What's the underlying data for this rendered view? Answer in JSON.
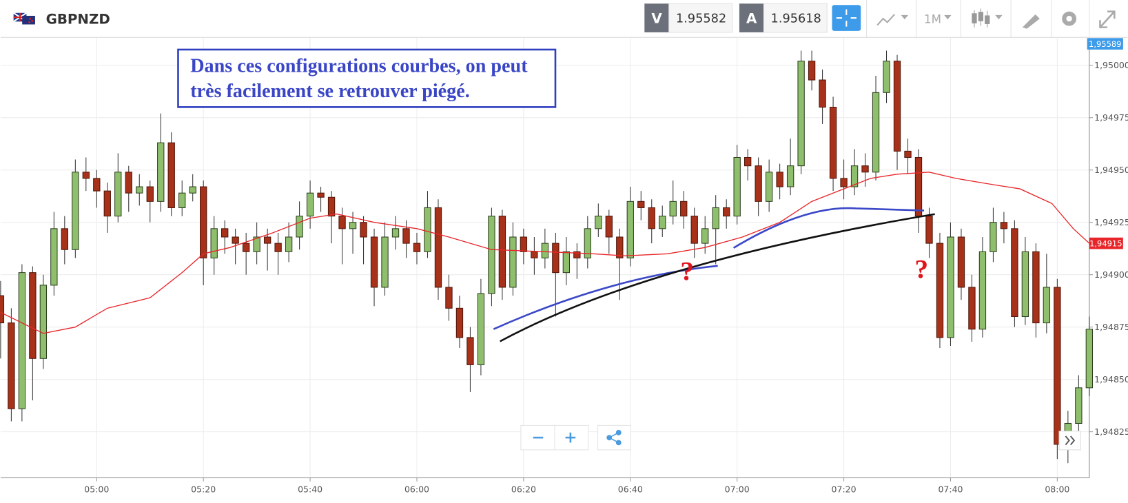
{
  "header": {
    "symbol": "GBPNZD",
    "bid_label": "V",
    "bid": "1.95582",
    "ask_label": "A",
    "ask": "1.95618",
    "timeframe": "1M"
  },
  "chart_data": {
    "type": "candlestick",
    "annotation": [
      "Dans ces configurations courbes, on peut",
      "très facilement se retrouver piégé."
    ],
    "markers": [
      "?",
      "?"
    ],
    "price_tag": "1,95589",
    "up_color": "#8fbf6c",
    "down_color": "#a8311a",
    "xlim": [
      "04:42",
      "08:06"
    ],
    "xticks": [
      "05:00",
      "05:20",
      "05:40",
      "06:00",
      "06:20",
      "06:40",
      "07:00",
      "07:20",
      "07:40",
      "08:00"
    ],
    "ylim": [
      1.94803,
      1.95013
    ],
    "yticks": [
      {
        "value": 1.95,
        "label": "1,95000"
      },
      {
        "value": 1.94975,
        "label": "1,94975"
      },
      {
        "value": 1.9495,
        "label": "1,94950"
      },
      {
        "value": 1.94925,
        "label": "1,94925"
      },
      {
        "value": 1.949,
        "label": "1,94900"
      },
      {
        "value": 1.94875,
        "label": "1,94875"
      },
      {
        "value": 1.9485,
        "label": "1,94850"
      },
      {
        "value": 1.94825,
        "label": "1,94825"
      }
    ],
    "grid": true,
    "x": [
      "04:42",
      "04:44",
      "04:46",
      "04:48",
      "04:50",
      "04:52",
      "04:54",
      "04:56",
      "04:58",
      "05:00",
      "05:02",
      "05:04",
      "05:06",
      "05:08",
      "05:10",
      "05:12",
      "05:14",
      "05:16",
      "05:18",
      "05:20",
      "05:22",
      "05:24",
      "05:26",
      "05:28",
      "05:30",
      "05:32",
      "05:34",
      "05:36",
      "05:38",
      "05:40",
      "05:42",
      "05:44",
      "05:46",
      "05:48",
      "05:50",
      "05:52",
      "05:54",
      "05:56",
      "05:58",
      "06:00",
      "06:02",
      "06:04",
      "06:06",
      "06:08",
      "06:10",
      "06:12",
      "06:14",
      "06:16",
      "06:18",
      "06:20",
      "06:22",
      "06:24",
      "06:26",
      "06:28",
      "06:30",
      "06:32",
      "06:34",
      "06:36",
      "06:38",
      "06:40",
      "06:42",
      "06:44",
      "06:46",
      "06:48",
      "06:50",
      "06:52",
      "06:54",
      "06:56",
      "06:58",
      "07:00",
      "07:02",
      "07:04",
      "07:06",
      "07:08",
      "07:10",
      "07:12",
      "07:14",
      "07:16",
      "07:18",
      "07:20",
      "07:22",
      "07:24",
      "07:26",
      "07:28",
      "07:30",
      "07:32",
      "07:34",
      "07:36",
      "07:38",
      "07:40",
      "07:42",
      "07:44",
      "07:46",
      "07:48",
      "07:50",
      "07:52",
      "07:54",
      "07:56",
      "07:58",
      "08:00",
      "08:02",
      "08:04",
      "08:06"
    ],
    "ohlc": [
      [
        1.9489,
        1.94897,
        1.9486,
        1.94877
      ],
      [
        1.94877,
        1.94884,
        1.9483,
        1.94836
      ],
      [
        1.94836,
        1.94905,
        1.9483,
        1.94901
      ],
      [
        1.94901,
        1.94904,
        1.9484,
        1.9486
      ],
      [
        1.9486,
        1.949,
        1.94855,
        1.94895
      ],
      [
        1.94895,
        1.9493,
        1.9489,
        1.94922
      ],
      [
        1.94922,
        1.94928,
        1.94905,
        1.94912
      ],
      [
        1.94912,
        1.94955,
        1.94908,
        1.94949
      ],
      [
        1.94949,
        1.94956,
        1.9494,
        1.94946
      ],
      [
        1.94946,
        1.9495,
        1.94932,
        1.9494
      ],
      [
        1.9494,
        1.94944,
        1.9492,
        1.94928
      ],
      [
        1.94928,
        1.94958,
        1.94925,
        1.94949
      ],
      [
        1.94949,
        1.94952,
        1.9493,
        1.94939
      ],
      [
        1.94939,
        1.94948,
        1.94933,
        1.94942
      ],
      [
        1.94942,
        1.94945,
        1.94925,
        1.94935
      ],
      [
        1.94935,
        1.94977,
        1.9493,
        1.94963
      ],
      [
        1.94963,
        1.94968,
        1.94928,
        1.94932
      ],
      [
        1.94932,
        1.94945,
        1.94928,
        1.94939
      ],
      [
        1.94939,
        1.94948,
        1.94935,
        1.94942
      ],
      [
        1.94942,
        1.94945,
        1.94895,
        1.94908
      ],
      [
        1.94908,
        1.94928,
        1.949,
        1.94922
      ],
      [
        1.94922,
        1.94926,
        1.9491,
        1.94918
      ],
      [
        1.94918,
        1.94922,
        1.94905,
        1.94915
      ],
      [
        1.94915,
        1.9492,
        1.949,
        1.94911
      ],
      [
        1.94911,
        1.94925,
        1.94905,
        1.94918
      ],
      [
        1.94918,
        1.94922,
        1.94902,
        1.94915
      ],
      [
        1.94915,
        1.9492,
        1.949,
        1.94911
      ],
      [
        1.94911,
        1.94925,
        1.94906,
        1.94918
      ],
      [
        1.94918,
        1.94935,
        1.94912,
        1.94928
      ],
      [
        1.94928,
        1.94945,
        1.94922,
        1.94939
      ],
      [
        1.94939,
        1.94942,
        1.9493,
        1.94937
      ],
      [
        1.94937,
        1.9494,
        1.94915,
        1.94928
      ],
      [
        1.94928,
        1.94932,
        1.94905,
        1.94922
      ],
      [
        1.94922,
        1.9493,
        1.9491,
        1.94925
      ],
      [
        1.94925,
        1.94928,
        1.94905,
        1.94918
      ],
      [
        1.94918,
        1.94922,
        1.94885,
        1.94894
      ],
      [
        1.94894,
        1.94925,
        1.9489,
        1.94918
      ],
      [
        1.94918,
        1.94928,
        1.94912,
        1.94922
      ],
      [
        1.94922,
        1.94926,
        1.94908,
        1.94915
      ],
      [
        1.94915,
        1.9492,
        1.94905,
        1.94911
      ],
      [
        1.94911,
        1.9494,
        1.94908,
        1.94932
      ],
      [
        1.94932,
        1.94936,
        1.94888,
        1.94894
      ],
      [
        1.94894,
        1.949,
        1.94878,
        1.94884
      ],
      [
        1.94884,
        1.9489,
        1.94865,
        1.9487
      ],
      [
        1.9487,
        1.94875,
        1.94844,
        1.94857
      ],
      [
        1.94857,
        1.94898,
        1.94852,
        1.94891
      ],
      [
        1.94891,
        1.94932,
        1.94885,
        1.94928
      ],
      [
        1.94928,
        1.94931,
        1.94888,
        1.94894
      ],
      [
        1.94894,
        1.94925,
        1.9489,
        1.94918
      ],
      [
        1.94918,
        1.94922,
        1.94905,
        1.94911
      ],
      [
        1.94911,
        1.94918,
        1.949,
        1.94908
      ],
      [
        1.94908,
        1.94922,
        1.94903,
        1.94915
      ],
      [
        1.94915,
        1.9492,
        1.9488,
        1.94901
      ],
      [
        1.94901,
        1.94918,
        1.94895,
        1.94911
      ],
      [
        1.94911,
        1.94915,
        1.94898,
        1.94908
      ],
      [
        1.94908,
        1.94928,
        1.94903,
        1.94922
      ],
      [
        1.94922,
        1.94934,
        1.94918,
        1.94928
      ],
      [
        1.94928,
        1.94931,
        1.9491,
        1.94918
      ],
      [
        1.94918,
        1.94922,
        1.94888,
        1.94908
      ],
      [
        1.94908,
        1.94942,
        1.94904,
        1.94935
      ],
      [
        1.94935,
        1.9494,
        1.94926,
        1.94932
      ],
      [
        1.94932,
        1.94936,
        1.94915,
        1.94922
      ],
      [
        1.94922,
        1.94933,
        1.94918,
        1.94928
      ],
      [
        1.94928,
        1.94945,
        1.94924,
        1.94935
      ],
      [
        1.94935,
        1.9494,
        1.94922,
        1.94928
      ],
      [
        1.94928,
        1.94932,
        1.94908,
        1.94915
      ],
      [
        1.94915,
        1.94928,
        1.9491,
        1.94922
      ],
      [
        1.94922,
        1.94938,
        1.94905,
        1.94932
      ],
      [
        1.94932,
        1.94936,
        1.94922,
        1.94928
      ],
      [
        1.94928,
        1.94962,
        1.94924,
        1.94956
      ],
      [
        1.94956,
        1.9496,
        1.94945,
        1.94952
      ],
      [
        1.94952,
        1.94956,
        1.94928,
        1.94935
      ],
      [
        1.94935,
        1.94955,
        1.9493,
        1.94949
      ],
      [
        1.94949,
        1.94953,
        1.94936,
        1.94942
      ],
      [
        1.94942,
        1.94965,
        1.94938,
        1.94952
      ],
      [
        1.94952,
        1.95007,
        1.94948,
        1.95002
      ],
      [
        1.95002,
        1.95007,
        1.94988,
        1.94993
      ],
      [
        1.94993,
        1.94998,
        1.94972,
        1.9498
      ],
      [
        1.9498,
        1.94985,
        1.9494,
        1.94946
      ],
      [
        1.94946,
        1.94955,
        1.94936,
        1.94942
      ],
      [
        1.94942,
        1.9496,
        1.94938,
        1.94952
      ],
      [
        1.94952,
        1.94958,
        1.94942,
        1.94949
      ],
      [
        1.94949,
        1.94995,
        1.94945,
        1.94987
      ],
      [
        1.94987,
        1.95007,
        1.94982,
        1.95002
      ],
      [
        1.95002,
        1.95005,
        1.9495,
        1.94959
      ],
      [
        1.94959,
        1.94965,
        1.94948,
        1.94956
      ],
      [
        1.94956,
        1.9496,
        1.9492,
        1.94928
      ],
      [
        1.94928,
        1.94932,
        1.94908,
        1.94915
      ],
      [
        1.94915,
        1.9492,
        1.94865,
        1.9487
      ],
      [
        1.9487,
        1.94925,
        1.94866,
        1.94918
      ],
      [
        1.94918,
        1.94922,
        1.94888,
        1.94894
      ],
      [
        1.94894,
        1.949,
        1.94868,
        1.94874
      ],
      [
        1.94874,
        1.94918,
        1.9487,
        1.94911
      ],
      [
        1.94911,
        1.94932,
        1.94906,
        1.94925
      ],
      [
        1.94925,
        1.9493,
        1.94915,
        1.94922
      ],
      [
        1.94922,
        1.94926,
        1.94875,
        1.9488
      ],
      [
        1.9488,
        1.94918,
        1.94876,
        1.94911
      ],
      [
        1.94911,
        1.94915,
        1.9487,
        1.94877
      ],
      [
        1.94877,
        1.9491,
        1.94872,
        1.94894
      ],
      [
        1.94894,
        1.94898,
        1.94812,
        1.94819
      ],
      [
        1.94819,
        1.94835,
        1.9481,
        1.94829
      ],
      [
        1.94829,
        1.94852,
        1.94825,
        1.94846
      ],
      [
        1.94846,
        1.9488,
        1.94842,
        1.94874
      ]
    ],
    "ma": {
      "color": "#e8262a",
      "x": [
        "04:42",
        "04:50",
        "04:56",
        "05:02",
        "05:10",
        "05:16",
        "05:20",
        "05:25",
        "05:33",
        "05:40",
        "05:45",
        "05:52",
        "06:00",
        "06:06",
        "06:14",
        "06:24",
        "06:33",
        "06:39",
        "06:47",
        "06:54",
        "07:01",
        "07:08",
        "07:14",
        "07:20",
        "07:25",
        "07:30",
        "07:36",
        "07:41",
        "07:48",
        "07:53",
        "07:59",
        "08:03",
        "08:06"
      ],
      "values": [
        1.94882,
        1.94872,
        1.94875,
        1.94884,
        1.94889,
        1.94901,
        1.9491,
        1.94913,
        1.9492,
        1.94927,
        1.94929,
        1.94925,
        1.94922,
        1.94918,
        1.94912,
        1.94911,
        1.9491,
        1.94909,
        1.9491,
        1.94913,
        1.94918,
        1.94925,
        1.94935,
        1.94941,
        1.94946,
        1.94948,
        1.94949,
        1.94946,
        1.94943,
        1.94941,
        1.94934,
        1.94922,
        1.94915
      ],
      "value_label": {
        "value": 1.94915,
        "label": "1,94915"
      }
    }
  }
}
